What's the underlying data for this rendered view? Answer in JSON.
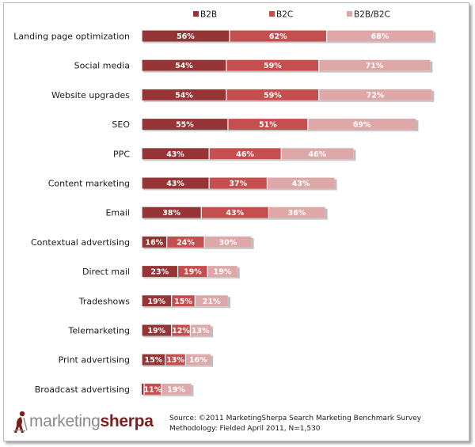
{
  "chart_data": {
    "type": "bar",
    "orientation": "horizontal",
    "stacked": true,
    "categories": [
      "Landing page  optimization",
      "Social media",
      "Website upgrades",
      "SEO",
      "PPC",
      "Content marketing",
      "Email",
      "Contextual advertising",
      "Direct mail",
      "Tradeshows",
      "Telemarketing",
      "Print advertising",
      "Broadcast advertising"
    ],
    "series": [
      {
        "name": "B2B",
        "color": "#953535",
        "values": [
          56,
          54,
          54,
          55,
          43,
          43,
          38,
          16,
          23,
          19,
          19,
          15,
          null
        ]
      },
      {
        "name": "B2C",
        "color": "#c54e4e",
        "values": [
          62,
          59,
          59,
          51,
          46,
          37,
          43,
          24,
          19,
          15,
          12,
          13,
          11
        ]
      },
      {
        "name": "B2B/B2C",
        "color": "#dfa8a8",
        "values": [
          68,
          71,
          72,
          69,
          46,
          43,
          36,
          30,
          19,
          21,
          13,
          16,
          19
        ]
      }
    ],
    "legend_position": "top",
    "grid": false,
    "value_suffix": "%"
  },
  "footer": {
    "logo_part1": "marketing",
    "logo_part2": "sherpa",
    "source_line1": "Source: ©2011 MarketingSherpa Search Marketing Benchmark Survey",
    "source_line2": "Methodology: Fielded April 2011, N=1,530"
  }
}
